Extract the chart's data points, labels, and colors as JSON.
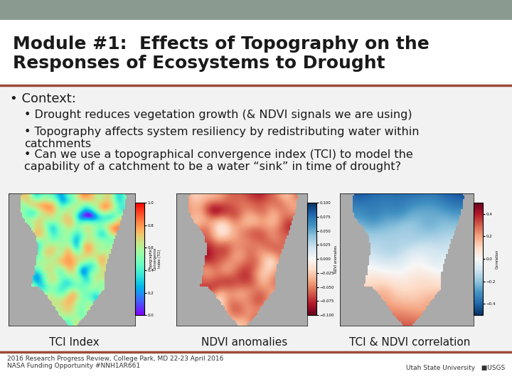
{
  "title_line1": "Module #1:  Effects of Topography on the",
  "title_line2": "Responses of Ecosystems to Drought",
  "header_bg": "#ffffff",
  "title_color": "#1a1a1a",
  "title_fontsize": 18,
  "bullet_main": "• Context:",
  "bullets": [
    "Drought reduces vegetation growth (& NDVI signals we are using)",
    "Topography affects system resiliency by redistributing water within\ncatchments",
    "Can we use a topographical convergence index (TCI) to model the\ncapability of a catchment to be a water “sink” in time of drought?"
  ],
  "bullet_main_fontsize": 13,
  "bullet_fontsize": 11.5,
  "map_labels": [
    "TCI Index",
    "NDVI anomalies",
    "TCI & NDVI correlation"
  ],
  "map_label_fontsize": 11,
  "footer_text": "2016 Research Progress Review, College Park, MD 22-23 April 2016\nNASA Funding Opportunity #NNH1AR661",
  "footer_fontsize": 6.5,
  "accent_color": "#9B4B3A",
  "slide_bg": "#909090",
  "header_top_bg": "#7a8a80",
  "body_bg": "#f2f2f2",
  "footer_bg": "#ffffff"
}
